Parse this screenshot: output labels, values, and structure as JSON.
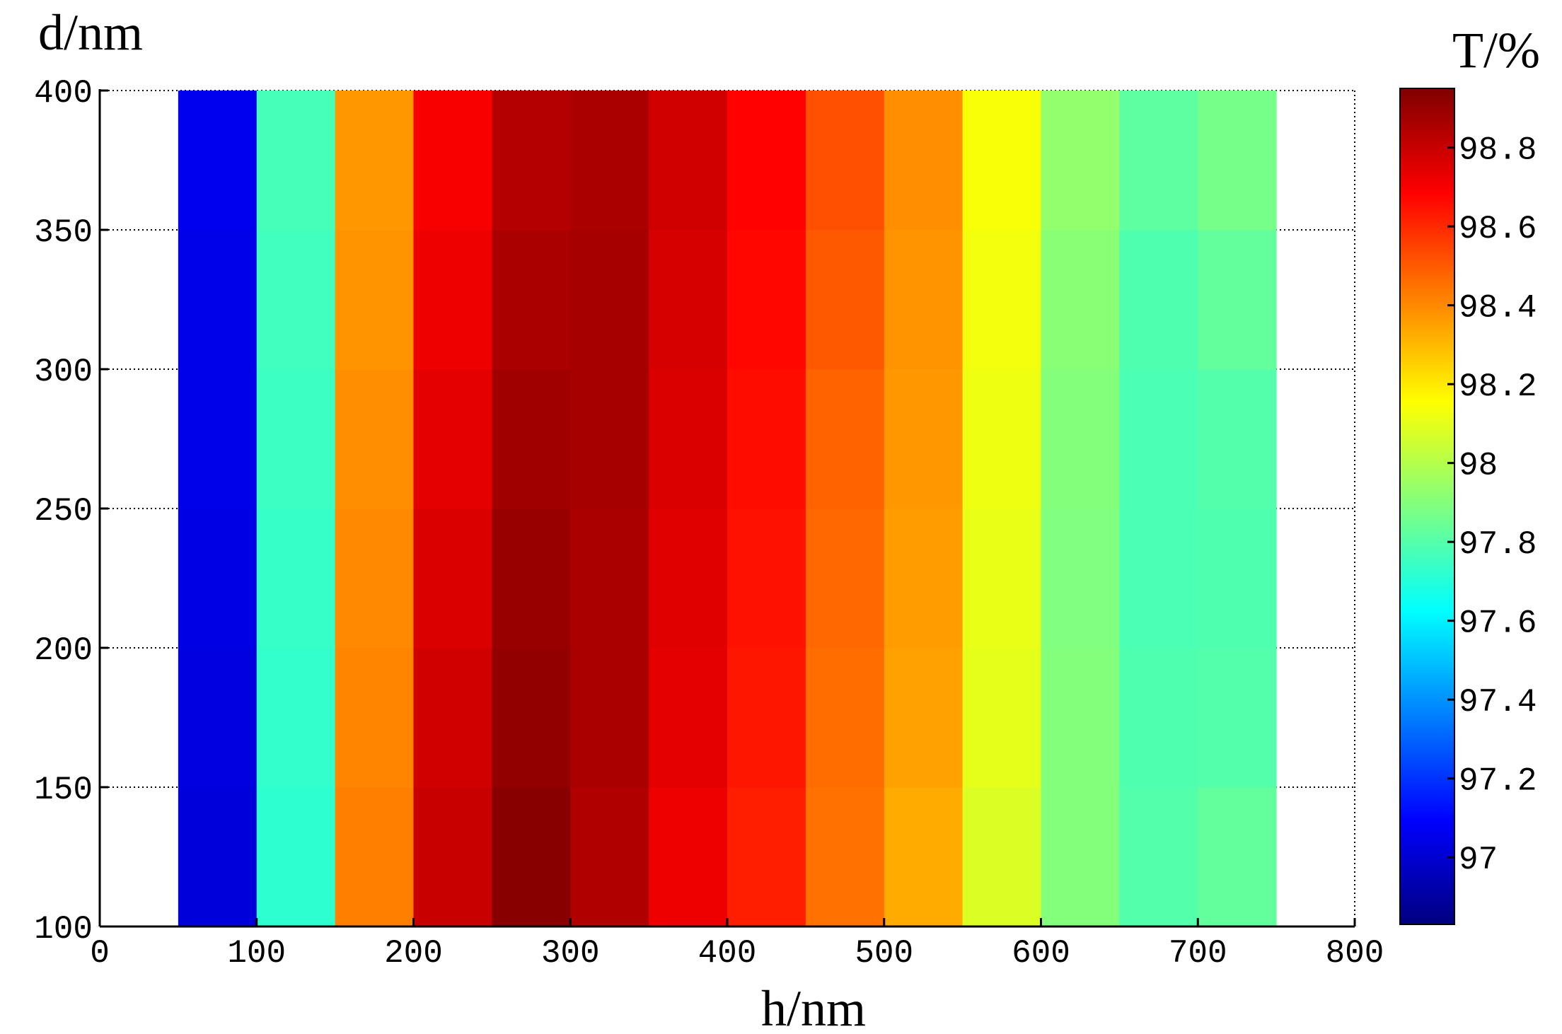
{
  "chart_data": {
    "type": "heatmap",
    "x_label": "h/nm",
    "y_label": "d/nm",
    "colorbar_label": "T/%",
    "x": [
      75,
      125,
      175,
      225,
      275,
      325,
      375,
      425,
      475,
      525,
      575,
      625,
      675,
      725
    ],
    "y": [
      125,
      175,
      225,
      275,
      325,
      375
    ],
    "z": [
      [
        97.02,
        97.72,
        98.42,
        98.8,
        98.93,
        98.85,
        98.72,
        98.62,
        98.45,
        98.33,
        98.08,
        97.9,
        97.8,
        97.83
      ],
      [
        97.03,
        97.73,
        98.41,
        98.78,
        98.91,
        98.86,
        98.74,
        98.64,
        98.46,
        98.35,
        98.1,
        97.9,
        97.79,
        97.8
      ],
      [
        97.04,
        97.74,
        98.4,
        98.76,
        98.9,
        98.86,
        98.75,
        98.65,
        98.47,
        98.36,
        98.11,
        97.89,
        97.78,
        97.79
      ],
      [
        97.05,
        97.75,
        98.39,
        98.74,
        98.88,
        98.87,
        98.76,
        98.66,
        98.48,
        98.37,
        98.12,
        97.9,
        97.78,
        97.8
      ],
      [
        97.05,
        97.76,
        98.38,
        98.72,
        98.86,
        98.87,
        98.77,
        98.67,
        98.5,
        98.38,
        98.13,
        97.91,
        97.79,
        97.83
      ],
      [
        97.06,
        97.77,
        98.37,
        98.7,
        98.84,
        98.86,
        98.78,
        98.68,
        98.52,
        98.39,
        98.14,
        97.93,
        97.82,
        97.87
      ]
    ],
    "xlim": [
      0,
      800
    ],
    "xticks": [
      0,
      100,
      200,
      300,
      400,
      500,
      600,
      700,
      800
    ],
    "ylim": [
      100,
      400
    ],
    "yticks": [
      100,
      150,
      200,
      250,
      300,
      350,
      400
    ],
    "clim": [
      96.83,
      98.95
    ],
    "cticks": [
      97,
      97.2,
      97.4,
      97.6,
      97.8,
      98,
      98.2,
      98.4,
      98.6,
      98.8
    ],
    "colormap": "jet",
    "grid": "y"
  }
}
